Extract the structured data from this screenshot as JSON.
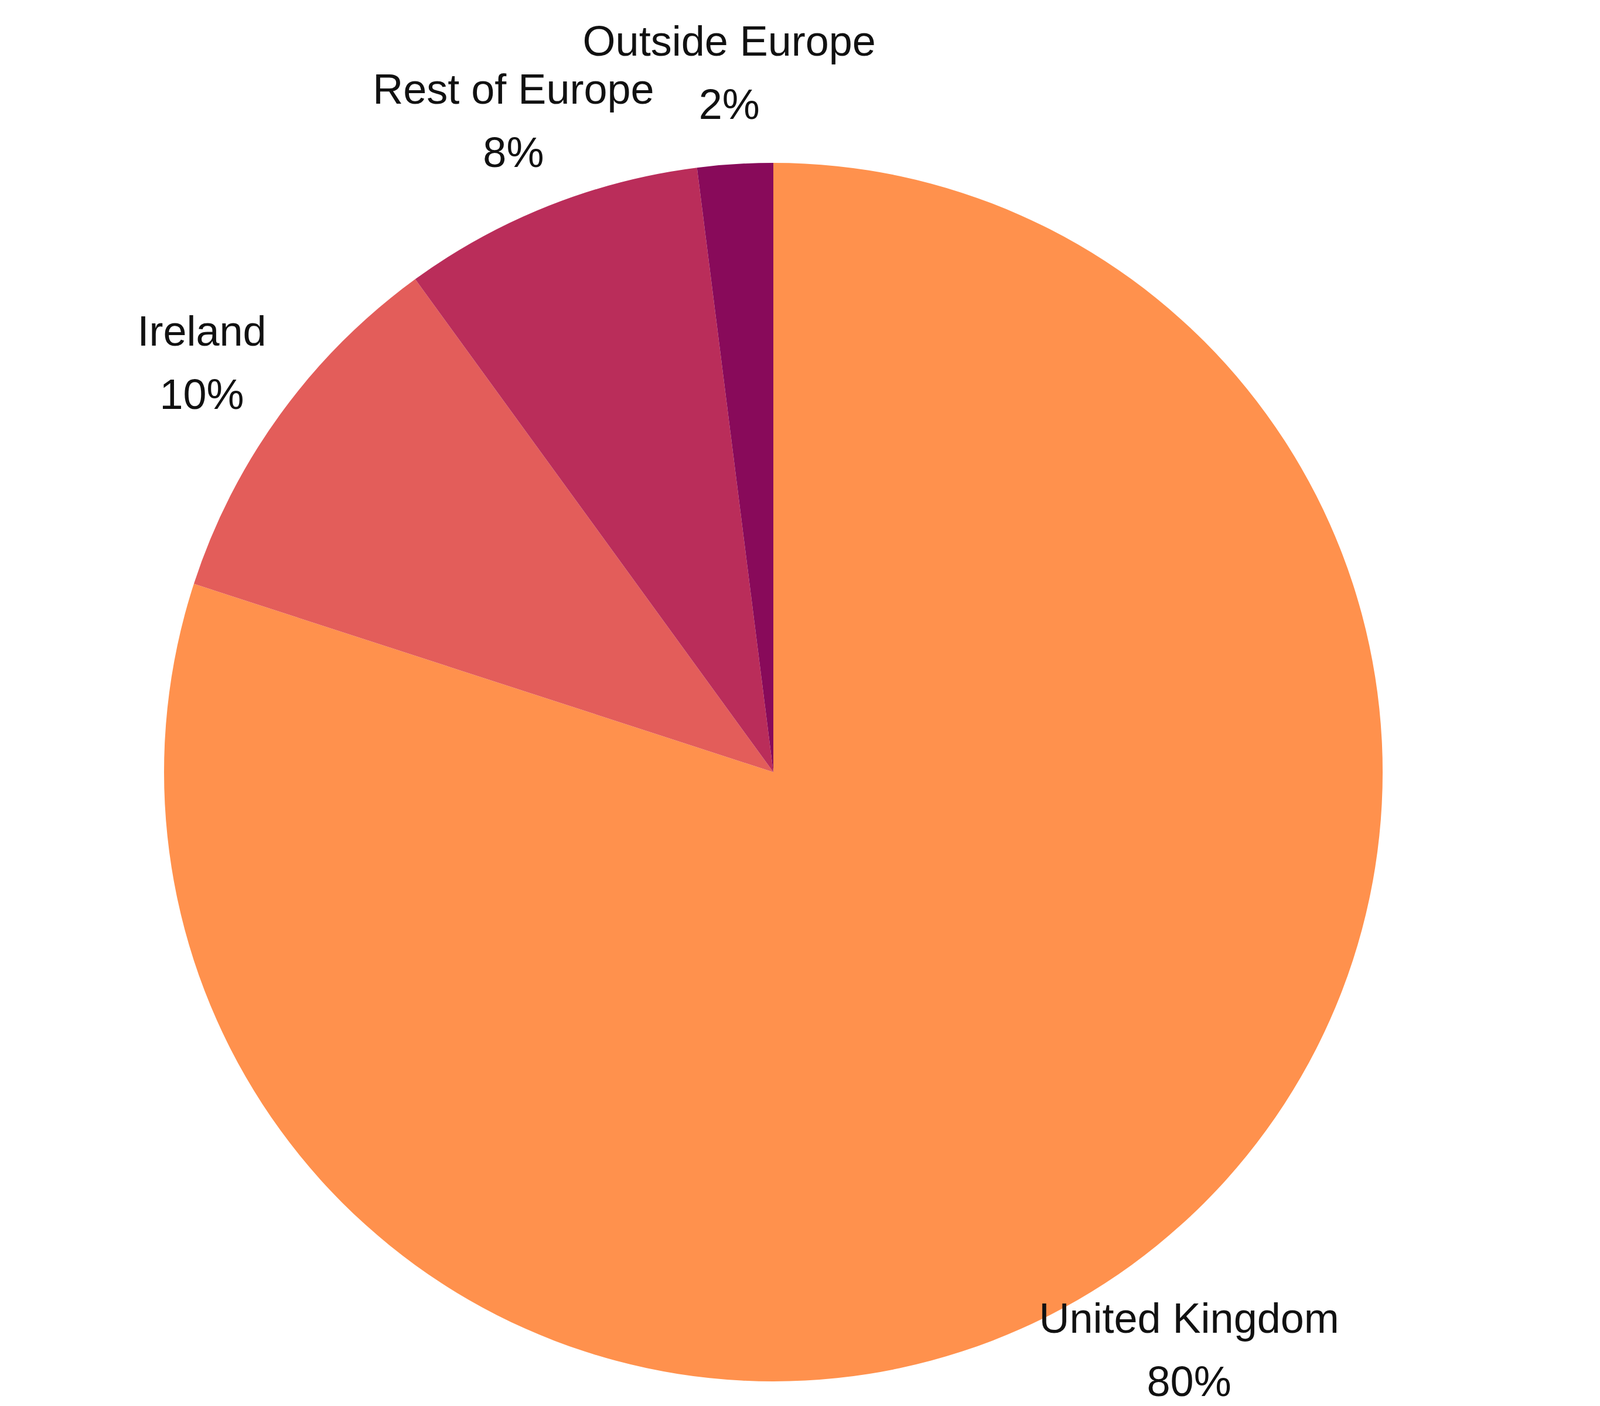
{
  "chart_data": {
    "type": "pie",
    "categories": [
      "United Kingdom",
      "Ireland",
      "Rest of Europe",
      "Outside Europe"
    ],
    "values": [
      80,
      10,
      8,
      2
    ],
    "value_labels": [
      "80%",
      "10%",
      "8%",
      "2%"
    ],
    "colors": [
      "#ff914d",
      "#e35d5a",
      "#ba2d5a",
      "#880a5a"
    ],
    "data_labels": true
  }
}
